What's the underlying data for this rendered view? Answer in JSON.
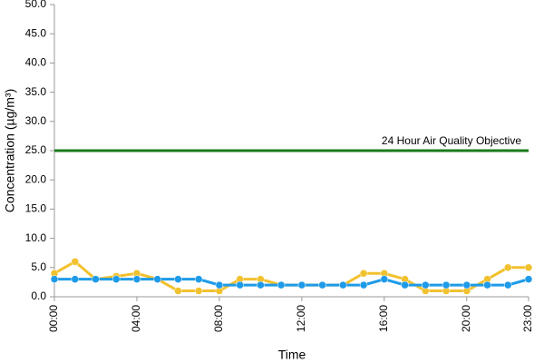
{
  "chart_data": {
    "type": "line",
    "x_label": "Time",
    "y_label": "Concentration (µg/m³)",
    "categories": [
      "00:00",
      null,
      null,
      null,
      "04:00",
      null,
      null,
      null,
      "08:00",
      null,
      null,
      null,
      "12:00",
      null,
      null,
      null,
      "16:00",
      null,
      null,
      null,
      "20:00",
      null,
      null,
      "23:00"
    ],
    "series": [
      {
        "color": "#f2c12e",
        "values": [
          4,
          6,
          3,
          3.5,
          4,
          3,
          1,
          1,
          1,
          3,
          3,
          2,
          2,
          2,
          2,
          4,
          4,
          3,
          1,
          1,
          1,
          3,
          5,
          5
        ]
      },
      {
        "color": "#1e9be8",
        "values": [
          3,
          3,
          3,
          3,
          3,
          3,
          3,
          3,
          2,
          2,
          2,
          2,
          2,
          2,
          2,
          2,
          3,
          2,
          2,
          2,
          2,
          2,
          2,
          3
        ]
      }
    ],
    "reference_line": {
      "value": 25,
      "label": "24 Hour Air Quality Objective",
      "color": "#1a7a1a"
    },
    "ylim": [
      0,
      50
    ],
    "yticks": [
      {
        "value": 0,
        "label": "0.0"
      },
      {
        "value": 5,
        "label": "5.0"
      },
      {
        "value": 10,
        "label": "10.0"
      },
      {
        "value": 15,
        "label": "15.0"
      },
      {
        "value": 20,
        "label": "20.0"
      },
      {
        "value": 25,
        "label": "25.0"
      },
      {
        "value": 30,
        "label": "30.0"
      },
      {
        "value": 35,
        "label": "35.0"
      },
      {
        "value": 40,
        "label": "40.0"
      },
      {
        "value": 45,
        "label": "45.0"
      },
      {
        "value": 50,
        "label": "50.0"
      }
    ],
    "grid": false
  }
}
